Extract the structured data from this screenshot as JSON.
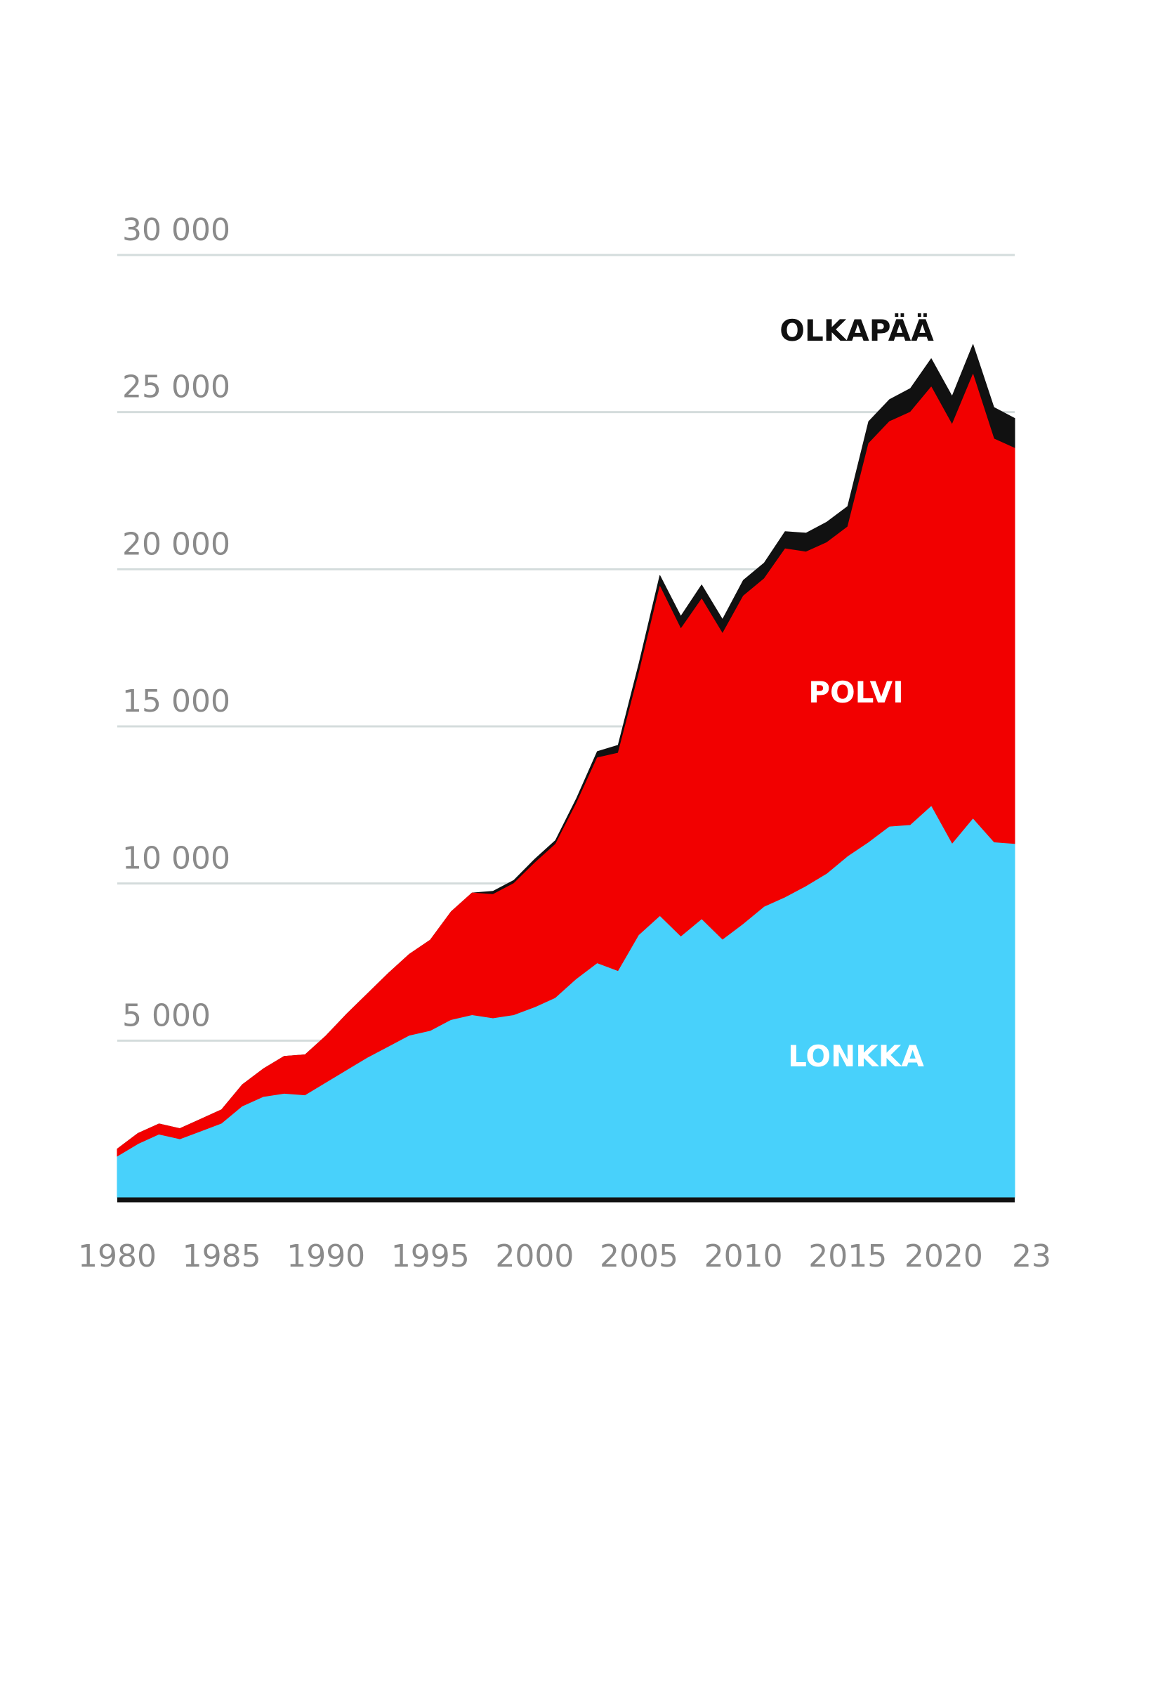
{
  "chart_data": {
    "type": "area",
    "stacked": true,
    "grid": true,
    "ylim": [
      0,
      30000
    ],
    "yticks": [
      5000,
      10000,
      15000,
      20000,
      25000,
      30000
    ],
    "ytick_labels": [
      "5 000",
      "10 000",
      "15 000",
      "20 000",
      "25 000",
      "30 000"
    ],
    "xtick_years": [
      1980,
      1985,
      1990,
      1995,
      2000,
      2005,
      2010,
      2015,
      2020,
      2023
    ],
    "xtick_labels": [
      "1980",
      "1985",
      "1990",
      "1995",
      "2000",
      "2005",
      "2010",
      "2015",
      "2020",
      "23"
    ],
    "x": [
      1980,
      1981,
      1982,
      1983,
      1984,
      1985,
      1986,
      1987,
      1988,
      1989,
      1990,
      1991,
      1992,
      1993,
      1994,
      1995,
      1996,
      1997,
      1998,
      1999,
      2000,
      2001,
      2002,
      2003,
      2004,
      2005,
      2006,
      2007,
      2008,
      2009,
      2010,
      2011,
      2012,
      2013,
      2014,
      2015,
      2016,
      2017,
      2018,
      2019,
      2020,
      2021,
      2022,
      2023
    ],
    "series": [
      {
        "name": "LONKKA",
        "color": "#48d1fb",
        "label_color": "#ffffff",
        "values": [
          1300,
          1700,
          2000,
          1850,
          2100,
          2350,
          2900,
          3200,
          3300,
          3250,
          3650,
          4050,
          4450,
          4800,
          5150,
          5300,
          5650,
          5800,
          5700,
          5800,
          6050,
          6350,
          6950,
          7450,
          7200,
          8350,
          8950,
          8300,
          8850,
          8200,
          8700,
          9250,
          9550,
          9900,
          10300,
          10850,
          11300,
          11800,
          11850,
          12450,
          11250,
          12050,
          11300,
          11250
        ]
      },
      {
        "name": "POLVI",
        "color": "#f20000",
        "label_color": "#ffffff",
        "values": [
          250,
          350,
          350,
          350,
          400,
          450,
          700,
          900,
          1200,
          1300,
          1500,
          1800,
          2050,
          2350,
          2600,
          2900,
          3450,
          3900,
          3950,
          4200,
          4600,
          4900,
          5600,
          6550,
          6950,
          8350,
          10500,
          9800,
          10200,
          9750,
          10450,
          10450,
          11100,
          10650,
          10550,
          10500,
          12700,
          12900,
          13150,
          13350,
          13350,
          14150,
          12850,
          12600
        ]
      },
      {
        "name": "OLKAPÄÄ",
        "color": "#111111",
        "label_color": "#111111",
        "values": [
          0,
          0,
          0,
          0,
          0,
          0,
          0,
          0,
          0,
          0,
          0,
          0,
          0,
          0,
          0,
          0,
          0,
          0,
          100,
          100,
          120,
          120,
          150,
          200,
          250,
          300,
          350,
          400,
          450,
          450,
          500,
          500,
          550,
          600,
          650,
          650,
          700,
          700,
          750,
          900,
          900,
          950,
          1000,
          950
        ]
      }
    ]
  }
}
